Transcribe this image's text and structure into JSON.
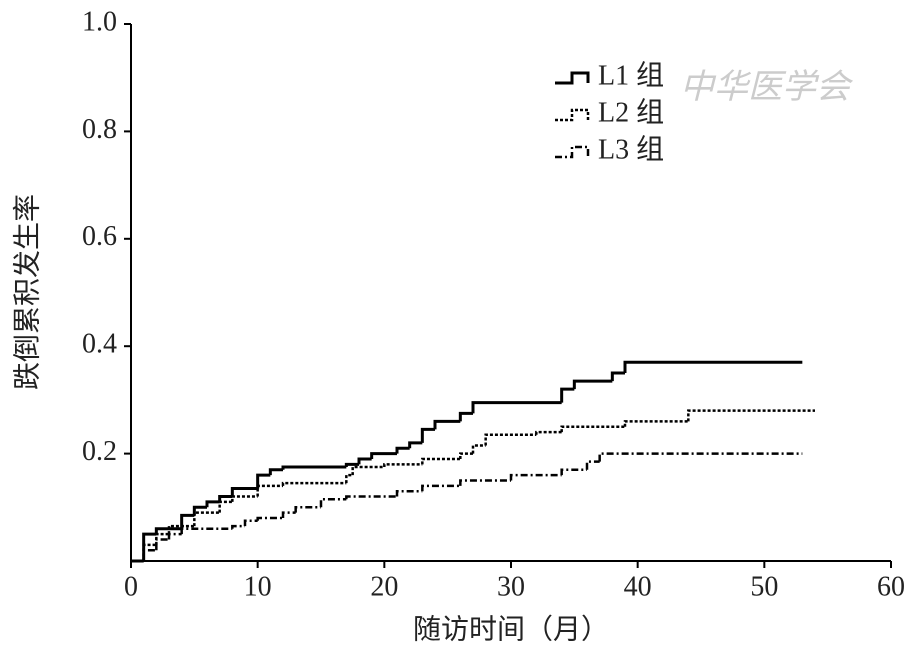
{
  "chart_data": {
    "type": "step",
    "xlabel": "随访时间（月）",
    "ylabel": "跌倒累积发生率",
    "watermark": "中华医学会",
    "xlim": [
      0,
      60
    ],
    "xticks": [
      0,
      10,
      20,
      30,
      40,
      50,
      60
    ],
    "ylim": [
      0,
      1
    ],
    "yticks": [
      0.2,
      0.4,
      0.6,
      0.8,
      {
        "value": 1,
        "label": "1.0"
      }
    ],
    "series": [
      {
        "name": "L1 组",
        "color": "#000000",
        "style": "solid",
        "x": [
          0,
          1,
          2,
          4,
          5,
          6,
          7,
          8,
          10,
          11,
          12,
          17,
          18,
          19,
          21,
          22,
          23,
          24,
          26,
          27,
          34,
          35,
          38,
          39,
          53
        ],
        "values": [
          0,
          0.05,
          0.06,
          0.085,
          0.1,
          0.11,
          0.12,
          0.135,
          0.16,
          0.17,
          0.175,
          0.18,
          0.19,
          0.2,
          0.21,
          0.22,
          0.245,
          0.26,
          0.275,
          0.295,
          0.32,
          0.335,
          0.35,
          0.37,
          0.37
        ]
      },
      {
        "name": "L2 组",
        "color": "#000000",
        "style": "dotted",
        "x": [
          0,
          1,
          2,
          3,
          5,
          7,
          8,
          10,
          12,
          17,
          17.5,
          20,
          23,
          26,
          27,
          28,
          32,
          34,
          39,
          44,
          54
        ],
        "values": [
          0,
          0.03,
          0.05,
          0.065,
          0.09,
          0.11,
          0.12,
          0.14,
          0.145,
          0.16,
          0.175,
          0.18,
          0.19,
          0.2,
          0.215,
          0.235,
          0.24,
          0.25,
          0.26,
          0.28,
          0.28
        ]
      },
      {
        "name": "L3 组",
        "color": "#000000",
        "style": "dashdot",
        "x": [
          0,
          1,
          2,
          3,
          4,
          8,
          9,
          10,
          12,
          13,
          15,
          17,
          21,
          23,
          26,
          30,
          34,
          36,
          37,
          53
        ],
        "values": [
          0,
          0.02,
          0.04,
          0.05,
          0.06,
          0.065,
          0.075,
          0.08,
          0.09,
          0.1,
          0.115,
          0.12,
          0.13,
          0.14,
          0.15,
          0.16,
          0.17,
          0.185,
          0.2,
          0.2
        ]
      }
    ]
  }
}
